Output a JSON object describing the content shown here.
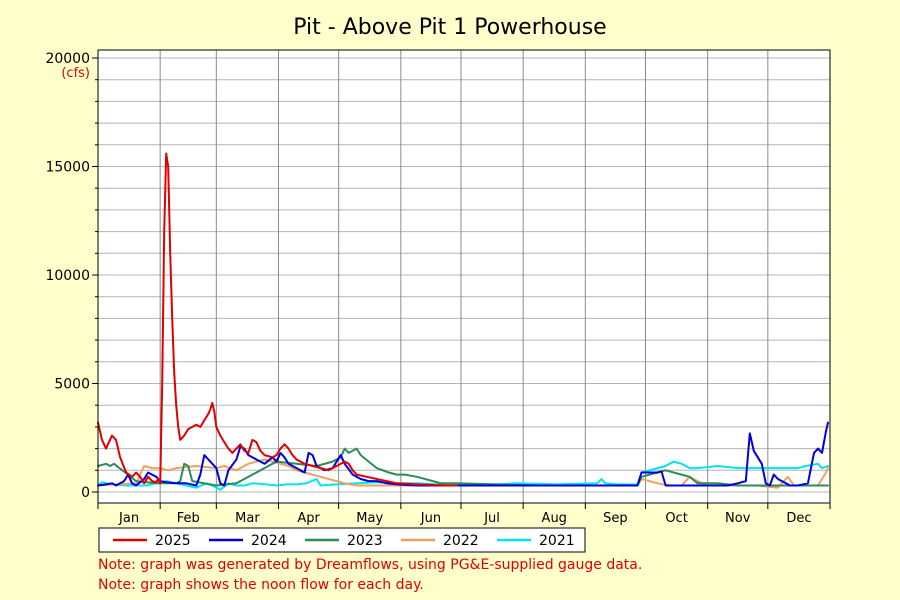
{
  "chart_data": {
    "type": "line",
    "title": "Pit - Above Pit 1 Powerhouse",
    "units": "(cfs)",
    "xlabel": "",
    "ylabel": "",
    "categories": [
      "Jan",
      "Feb",
      "Mar",
      "Apr",
      "May",
      "Jun",
      "Jul",
      "Aug",
      "Sep",
      "Oct",
      "Nov",
      "Dec"
    ],
    "ylim": [
      0,
      20000
    ],
    "yticks": [
      0,
      5000,
      10000,
      15000,
      20000
    ],
    "x_unit": "day of year",
    "xlim": [
      1,
      366
    ],
    "grid": true,
    "legend_position": "bottom",
    "series": [
      {
        "name": "2025",
        "color": "#e00000",
        "points": [
          [
            1,
            3200
          ],
          [
            3,
            2400
          ],
          [
            5,
            2000
          ],
          [
            8,
            2600
          ],
          [
            10,
            2400
          ],
          [
            12,
            1600
          ],
          [
            15,
            900
          ],
          [
            18,
            700
          ],
          [
            20,
            900
          ],
          [
            22,
            700
          ],
          [
            24,
            400
          ],
          [
            26,
            700
          ],
          [
            28,
            500
          ],
          [
            30,
            450
          ],
          [
            31,
            600
          ],
          [
            32,
            400
          ],
          [
            33,
            5000
          ],
          [
            34,
            12000
          ],
          [
            35,
            15600
          ],
          [
            36,
            15000
          ],
          [
            37,
            11000
          ],
          [
            38,
            8000
          ],
          [
            39,
            5500
          ],
          [
            40,
            4000
          ],
          [
            41,
            3000
          ],
          [
            42,
            2400
          ],
          [
            44,
            2600
          ],
          [
            46,
            2900
          ],
          [
            50,
            3100
          ],
          [
            52,
            3000
          ],
          [
            54,
            3300
          ],
          [
            56,
            3600
          ],
          [
            57,
            3800
          ],
          [
            58,
            4100
          ],
          [
            59,
            3700
          ],
          [
            60,
            3000
          ],
          [
            62,
            2600
          ],
          [
            64,
            2300
          ],
          [
            66,
            2000
          ],
          [
            68,
            1800
          ],
          [
            70,
            2000
          ],
          [
            72,
            2200
          ],
          [
            74,
            1900
          ],
          [
            76,
            1800
          ],
          [
            78,
            2400
          ],
          [
            80,
            2300
          ],
          [
            82,
            1900
          ],
          [
            84,
            1700
          ],
          [
            88,
            1600
          ],
          [
            90,
            1700
          ],
          [
            92,
            2000
          ],
          [
            94,
            2200
          ],
          [
            96,
            2000
          ],
          [
            98,
            1700
          ],
          [
            100,
            1500
          ],
          [
            104,
            1300
          ],
          [
            108,
            1200
          ],
          [
            112,
            1100
          ],
          [
            116,
            1000
          ],
          [
            120,
            1200
          ],
          [
            124,
            1400
          ],
          [
            126,
            1300
          ],
          [
            128,
            1000
          ],
          [
            130,
            800
          ],
          [
            135,
            700
          ],
          [
            140,
            600
          ],
          [
            145,
            500
          ],
          [
            150,
            400
          ],
          [
            160,
            350
          ],
          [
            175,
            300
          ],
          [
            180,
            300
          ]
        ]
      },
      {
        "name": "2024",
        "color": "#0000dd",
        "points": [
          [
            1,
            300
          ],
          [
            5,
            350
          ],
          [
            8,
            400
          ],
          [
            10,
            300
          ],
          [
            14,
            500
          ],
          [
            16,
            800
          ],
          [
            18,
            400
          ],
          [
            20,
            300
          ],
          [
            24,
            600
          ],
          [
            26,
            900
          ],
          [
            28,
            800
          ],
          [
            30,
            700
          ],
          [
            32,
            500
          ],
          [
            35,
            450
          ],
          [
            40,
            400
          ],
          [
            45,
            400
          ],
          [
            50,
            300
          ],
          [
            52,
            800
          ],
          [
            54,
            1700
          ],
          [
            57,
            1400
          ],
          [
            60,
            1100
          ],
          [
            62,
            400
          ],
          [
            64,
            300
          ],
          [
            66,
            1000
          ],
          [
            70,
            1500
          ],
          [
            72,
            2100
          ],
          [
            74,
            2000
          ],
          [
            76,
            1700
          ],
          [
            80,
            1500
          ],
          [
            84,
            1300
          ],
          [
            88,
            1600
          ],
          [
            90,
            1400
          ],
          [
            92,
            1800
          ],
          [
            94,
            1600
          ],
          [
            96,
            1300
          ],
          [
            100,
            1100
          ],
          [
            104,
            900
          ],
          [
            106,
            1800
          ],
          [
            108,
            1700
          ],
          [
            110,
            1200
          ],
          [
            114,
            1000
          ],
          [
            118,
            1100
          ],
          [
            122,
            1700
          ],
          [
            124,
            1300
          ],
          [
            128,
            800
          ],
          [
            132,
            600
          ],
          [
            136,
            500
          ],
          [
            140,
            500
          ],
          [
            145,
            400
          ],
          [
            150,
            350
          ],
          [
            160,
            300
          ],
          [
            180,
            300
          ],
          [
            200,
            300
          ],
          [
            220,
            300
          ],
          [
            240,
            300
          ],
          [
            265,
            300
          ],
          [
            270,
            300
          ],
          [
            272,
            900
          ],
          [
            276,
            900
          ],
          [
            280,
            900
          ],
          [
            282,
            950
          ],
          [
            284,
            300
          ],
          [
            290,
            300
          ],
          [
            300,
            300
          ],
          [
            310,
            300
          ],
          [
            315,
            300
          ],
          [
            320,
            400
          ],
          [
            324,
            500
          ],
          [
            326,
            2700
          ],
          [
            328,
            1900
          ],
          [
            330,
            1600
          ],
          [
            332,
            1300
          ],
          [
            334,
            400
          ],
          [
            336,
            300
          ],
          [
            338,
            800
          ],
          [
            340,
            600
          ],
          [
            342,
            500
          ],
          [
            344,
            400
          ],
          [
            346,
            300
          ],
          [
            350,
            300
          ],
          [
            355,
            400
          ],
          [
            358,
            1800
          ],
          [
            360,
            2000
          ],
          [
            362,
            1800
          ],
          [
            364,
            2800
          ],
          [
            365,
            3200
          ]
        ]
      },
      {
        "name": "2023",
        "color": "#2e8b57",
        "points": [
          [
            1,
            1200
          ],
          [
            5,
            1300
          ],
          [
            7,
            1200
          ],
          [
            9,
            1300
          ],
          [
            20,
            500
          ],
          [
            30,
            400
          ],
          [
            40,
            400
          ],
          [
            42,
            500
          ],
          [
            44,
            1300
          ],
          [
            46,
            1200
          ],
          [
            48,
            500
          ],
          [
            60,
            300
          ],
          [
            70,
            400
          ],
          [
            80,
            900
          ],
          [
            90,
            1400
          ],
          [
            100,
            1300
          ],
          [
            110,
            1200
          ],
          [
            118,
            1400
          ],
          [
            122,
            1600
          ],
          [
            124,
            2000
          ],
          [
            126,
            1800
          ],
          [
            130,
            2000
          ],
          [
            132,
            1700
          ],
          [
            136,
            1400
          ],
          [
            140,
            1100
          ],
          [
            146,
            900
          ],
          [
            150,
            800
          ],
          [
            154,
            800
          ],
          [
            160,
            700
          ],
          [
            168,
            500
          ],
          [
            172,
            400
          ],
          [
            180,
            400
          ],
          [
            200,
            350
          ],
          [
            220,
            300
          ],
          [
            240,
            300
          ],
          [
            260,
            300
          ],
          [
            270,
            300
          ],
          [
            272,
            700
          ],
          [
            276,
            800
          ],
          [
            280,
            900
          ],
          [
            284,
            1000
          ],
          [
            288,
            900
          ],
          [
            292,
            800
          ],
          [
            296,
            700
          ],
          [
            300,
            400
          ],
          [
            310,
            400
          ],
          [
            320,
            300
          ],
          [
            330,
            300
          ],
          [
            340,
            300
          ],
          [
            350,
            300
          ],
          [
            360,
            300
          ],
          [
            365,
            300
          ]
        ]
      },
      {
        "name": "2022",
        "color": "#f0a060",
        "points": [
          [
            1,
            300
          ],
          [
            10,
            350
          ],
          [
            20,
            400
          ],
          [
            24,
            1200
          ],
          [
            28,
            1100
          ],
          [
            32,
            1100
          ],
          [
            36,
            1000
          ],
          [
            40,
            1100
          ],
          [
            50,
            1200
          ],
          [
            60,
            1100
          ],
          [
            64,
            1200
          ],
          [
            70,
            1000
          ],
          [
            76,
            1300
          ],
          [
            80,
            1400
          ],
          [
            84,
            1500
          ],
          [
            88,
            1400
          ],
          [
            92,
            1300
          ],
          [
            96,
            1200
          ],
          [
            100,
            1000
          ],
          [
            104,
            900
          ],
          [
            108,
            800
          ],
          [
            112,
            700
          ],
          [
            116,
            600
          ],
          [
            120,
            500
          ],
          [
            124,
            400
          ],
          [
            130,
            300
          ],
          [
            140,
            300
          ],
          [
            160,
            300
          ],
          [
            180,
            300
          ],
          [
            200,
            300
          ],
          [
            220,
            300
          ],
          [
            240,
            300
          ],
          [
            260,
            300
          ],
          [
            270,
            300
          ],
          [
            272,
            600
          ],
          [
            276,
            500
          ],
          [
            280,
            400
          ],
          [
            286,
            300
          ],
          [
            292,
            300
          ],
          [
            296,
            700
          ],
          [
            300,
            500
          ],
          [
            305,
            300
          ],
          [
            320,
            300
          ],
          [
            330,
            300
          ],
          [
            340,
            200
          ],
          [
            345,
            700
          ],
          [
            348,
            300
          ],
          [
            355,
            300
          ],
          [
            360,
            300
          ],
          [
            364,
            900
          ],
          [
            365,
            1100
          ]
        ]
      },
      {
        "name": "2021",
        "color": "#00e5ee",
        "points": [
          [
            1,
            300
          ],
          [
            3,
            450
          ],
          [
            5,
            400
          ],
          [
            8,
            350
          ],
          [
            15,
            300
          ],
          [
            25,
            300
          ],
          [
            30,
            400
          ],
          [
            35,
            500
          ],
          [
            40,
            400
          ],
          [
            45,
            300
          ],
          [
            50,
            200
          ],
          [
            55,
            400
          ],
          [
            58,
            300
          ],
          [
            62,
            100
          ],
          [
            66,
            400
          ],
          [
            70,
            300
          ],
          [
            74,
            300
          ],
          [
            78,
            400
          ],
          [
            85,
            350
          ],
          [
            90,
            300
          ],
          [
            95,
            350
          ],
          [
            100,
            350
          ],
          [
            105,
            400
          ],
          [
            110,
            600
          ],
          [
            112,
            300
          ],
          [
            120,
            350
          ],
          [
            130,
            400
          ],
          [
            140,
            450
          ],
          [
            150,
            400
          ],
          [
            160,
            400
          ],
          [
            170,
            350
          ],
          [
            180,
            350
          ],
          [
            190,
            350
          ],
          [
            200,
            350
          ],
          [
            210,
            400
          ],
          [
            230,
            350
          ],
          [
            250,
            400
          ],
          [
            252,
            600
          ],
          [
            254,
            400
          ],
          [
            260,
            350
          ],
          [
            270,
            350
          ],
          [
            272,
            900
          ],
          [
            276,
            1000
          ],
          [
            280,
            1100
          ],
          [
            284,
            1200
          ],
          [
            288,
            1400
          ],
          [
            292,
            1300
          ],
          [
            296,
            1100
          ],
          [
            300,
            1100
          ],
          [
            310,
            1200
          ],
          [
            320,
            1100
          ],
          [
            330,
            1100
          ],
          [
            340,
            1100
          ],
          [
            350,
            1100
          ],
          [
            354,
            1200
          ],
          [
            360,
            1300
          ],
          [
            362,
            1100
          ],
          [
            365,
            1200
          ]
        ]
      }
    ]
  },
  "notes": [
    "Note: graph was generated by Dreamflows, using PG&E-supplied gauge data.",
    "Note: graph shows the noon flow for each day."
  ],
  "chrome_colors": {
    "background": "#ffffcc",
    "plot_background": "#ffffff",
    "grid": "#aaaaaa",
    "note": "#e00000"
  }
}
